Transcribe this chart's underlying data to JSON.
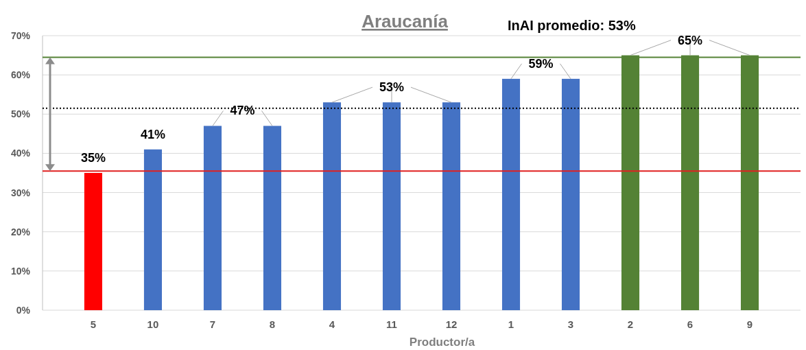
{
  "chart_data": {
    "type": "bar",
    "title": "Araucanía",
    "xlabel": "Productor/a",
    "categories": [
      "5",
      "10",
      "7",
      "8",
      "4",
      "11",
      "12",
      "1",
      "3",
      "2",
      "6",
      "9"
    ],
    "values": [
      35,
      41,
      47,
      47,
      53,
      53,
      53,
      59,
      59,
      65,
      65,
      65
    ],
    "colors": [
      "#ff0000",
      "#4472c4",
      "#4472c4",
      "#4472c4",
      "#4472c4",
      "#4472c4",
      "#4472c4",
      "#4472c4",
      "#4472c4",
      "#548235",
      "#548235",
      "#548235"
    ],
    "value_labels": [
      "35%",
      "41%",
      "47%",
      null,
      "53%",
      null,
      null,
      "59%",
      null,
      null,
      "65%",
      null
    ],
    "ylim": [
      0,
      70
    ],
    "yticks": [
      {
        "value": 0,
        "label": "0%"
      },
      {
        "value": 10,
        "label": "10%"
      },
      {
        "value": 20,
        "label": "20%"
      },
      {
        "value": 30,
        "label": "30%"
      },
      {
        "value": 40,
        "label": "40%"
      },
      {
        "value": 50,
        "label": "50%"
      },
      {
        "value": 60,
        "label": "60%"
      },
      {
        "value": 70,
        "label": "70%"
      }
    ],
    "grid": "y",
    "ref_lines": [
      {
        "axis": "y",
        "value": 64.5,
        "color": "#548235",
        "line_style": "solid"
      },
      {
        "axis": "y",
        "value": 35.5,
        "color": "#e02020",
        "line_style": "solid"
      },
      {
        "axis": "y",
        "value": 51.5,
        "color": "#000000",
        "line_style": "dotted"
      }
    ],
    "annotations": [
      "InAI promedio: 53%"
    ]
  }
}
